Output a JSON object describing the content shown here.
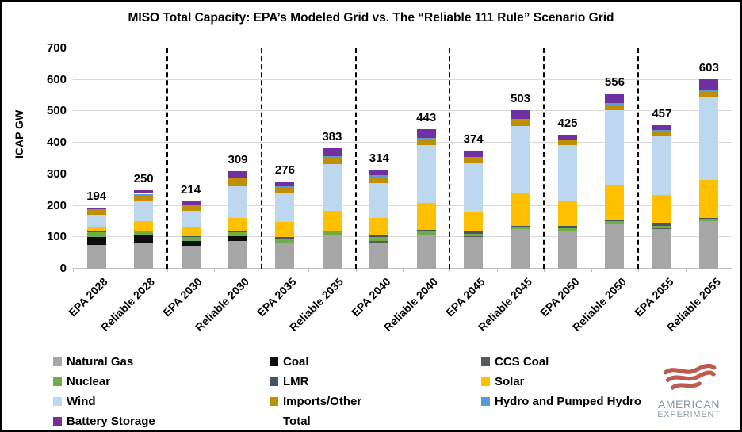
{
  "title": "MISO Total Capacity: EPA’s Modeled Grid vs. The “Reliable 111 Rule” Scenario Grid",
  "y_axis": {
    "label": "ICAP GW",
    "max": 700,
    "ticks": [
      0,
      100,
      200,
      300,
      400,
      500,
      600,
      700
    ]
  },
  "chart_data": {
    "type": "bar",
    "stacked": true,
    "categories": [
      "EPA 2028",
      "Reliable 2028",
      "EPA 2030",
      "Reliable 2030",
      "EPA 2035",
      "Reliable 2035",
      "EPA 2040",
      "Reliable 2040",
      "EPA 2045",
      "Reliable 2045",
      "EPA 2050",
      "Reliable 2050",
      "EPA 2055",
      "Reliable 2055"
    ],
    "totals": [
      194,
      250,
      214,
      309,
      276,
      383,
      314,
      443,
      374,
      503,
      425,
      556,
      457,
      603
    ],
    "ylim": [
      0,
      700
    ],
    "grid": true,
    "group_separators_after_category_index": [
      1,
      3,
      5,
      7,
      9,
      11
    ],
    "series": [
      {
        "name": "Natural Gas",
        "color": "#A6A6A6",
        "values": [
          76,
          80,
          72,
          88,
          80,
          105,
          84,
          107,
          101,
          126,
          118,
          143,
          126,
          151
        ]
      },
      {
        "name": "Coal",
        "color": "#0D0D0D",
        "values": [
          26,
          26,
          16,
          16,
          0,
          0,
          0,
          0,
          0,
          0,
          0,
          0,
          0,
          0
        ]
      },
      {
        "name": "CCS Coal",
        "color": "#595959",
        "values": [
          0,
          0,
          0,
          0,
          3,
          0,
          3,
          0,
          3,
          0,
          3,
          0,
          3,
          0
        ]
      },
      {
        "name": "Nuclear",
        "color": "#70AD47",
        "values": [
          13,
          13,
          13,
          13,
          13,
          13,
          14,
          14,
          8,
          8,
          8,
          8,
          8,
          8
        ]
      },
      {
        "name": "LMR",
        "color": "#44546A",
        "values": [
          3,
          3,
          3,
          3,
          6,
          3,
          8,
          3,
          8,
          3,
          8,
          3,
          8,
          3
        ]
      },
      {
        "name": "Solar",
        "color": "#FFC000",
        "values": [
          13,
          28,
          26,
          42,
          46,
          62,
          52,
          84,
          59,
          105,
          80,
          113,
          88,
          121
        ]
      },
      {
        "name": "Wind",
        "color": "#BDD7EE",
        "values": [
          40,
          66,
          53,
          100,
          95,
          150,
          110,
          185,
          155,
          212,
          175,
          237,
          190,
          262
        ]
      },
      {
        "name": "Imports/Other",
        "color": "#BF8F00",
        "values": [
          16,
          18,
          18,
          24,
          17,
          20,
          22,
          17,
          18,
          19,
          15,
          17,
          15,
          17
        ]
      },
      {
        "name": "Hydro and Pumped Hydro",
        "color": "#5B9BD5",
        "values": [
          3,
          4,
          3,
          4,
          3,
          4,
          4,
          5,
          4,
          4,
          3,
          5,
          3,
          5
        ]
      },
      {
        "name": "Battery Storage",
        "color": "#7030A0",
        "values": [
          4,
          12,
          10,
          19,
          13,
          26,
          17,
          28,
          18,
          26,
          15,
          30,
          16,
          36
        ]
      }
    ]
  },
  "legend": {
    "columns": [
      {
        "items": [
          {
            "label": "Natural Gas",
            "color": "#A6A6A6"
          },
          {
            "label": "Nuclear",
            "color": "#70AD47"
          },
          {
            "label": "Wind",
            "color": "#BDD7EE"
          },
          {
            "label": "Battery Storage",
            "color": "#7030A0"
          }
        ]
      },
      {
        "items": [
          {
            "label": "Coal",
            "color": "#0D0D0D"
          },
          {
            "label": "LMR",
            "color": "#44546A"
          },
          {
            "label": "Imports/Other",
            "color": "#BF8F00"
          },
          {
            "label": "Total",
            "color": null
          }
        ]
      },
      {
        "items": [
          {
            "label": "CCS Coal",
            "color": "#595959"
          },
          {
            "label": "Solar",
            "color": "#FFC000"
          },
          {
            "label": "Hydro and Pumped Hydro",
            "color": "#5B9BD5"
          }
        ]
      }
    ]
  },
  "logo": {
    "line1": "AMERICAN",
    "line2": "EXPERIMENT",
    "flag_color": "#BE5A50"
  }
}
